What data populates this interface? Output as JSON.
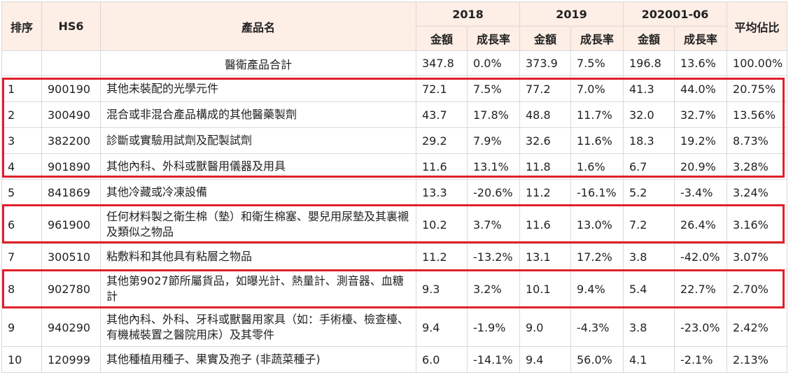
{
  "headers": {
    "rank": "排序",
    "hs6": "HS6",
    "product": "產品名",
    "years": [
      "2018",
      "2019",
      "202001-06"
    ],
    "amount": "金額",
    "growth": "成長率",
    "share": "平均佔比"
  },
  "total_row": {
    "name": "醫衛產品合計",
    "y2018_amount": "347.8",
    "y2018_growth": "0.0%",
    "y2019_amount": "373.9",
    "y2019_growth": "7.5%",
    "y2020_amount": "196.8",
    "y2020_growth": "13.6%",
    "share": "100.00%"
  },
  "rows": [
    {
      "rank": "1",
      "hs6": "900190",
      "name": "其他未裝配的光學元件",
      "a18": "72.1",
      "g18": "7.5%",
      "a19": "77.2",
      "g19": "7.0%",
      "a20": "41.3",
      "g20": "44.0%",
      "share": "20.75%"
    },
    {
      "rank": "2",
      "hs6": "300490",
      "name": "混合或非混合產品構成的其他醫藥製劑",
      "a18": "43.7",
      "g18": "17.8%",
      "a19": "48.8",
      "g19": "11.7%",
      "a20": "32.0",
      "g20": "32.7%",
      "share": "13.56%"
    },
    {
      "rank": "3",
      "hs6": "382200",
      "name": "診斷或實驗用試劑及配製試劑",
      "a18": "29.2",
      "g18": "7.9%",
      "a19": "32.6",
      "g19": "11.6%",
      "a20": "18.3",
      "g20": "19.2%",
      "share": "8.73%"
    },
    {
      "rank": "4",
      "hs6": "901890",
      "name": "其他內科、外科或獸醫用儀器及用具",
      "a18": "11.6",
      "g18": "13.1%",
      "a19": "11.8",
      "g19": "1.6%",
      "a20": "6.7",
      "g20": "20.9%",
      "share": "3.28%"
    },
    {
      "rank": "5",
      "hs6": "841869",
      "name": "其他冷藏或冷凍設備",
      "a18": "13.3",
      "g18": "-20.6%",
      "a19": "11.2",
      "g19": "-16.1%",
      "a20": "5.2",
      "g20": "-3.4%",
      "share": "3.24%"
    },
    {
      "rank": "6",
      "hs6": "961900",
      "name": "任何材料製之衛生棉（墊）和衛生棉塞、嬰兒用尿墊及其裏襯及類似之物品",
      "a18": "10.2",
      "g18": "3.7%",
      "a19": "11.6",
      "g19": "13.0%",
      "a20": "7.2",
      "g20": "26.4%",
      "share": "3.16%"
    },
    {
      "rank": "7",
      "hs6": "300510",
      "name": "粘敷料和其他具有粘層之物品",
      "a18": "11.2",
      "g18": "-13.2%",
      "a19": "13.1",
      "g19": "17.2%",
      "a20": "3.8",
      "g20": "-42.0%",
      "share": "3.07%"
    },
    {
      "rank": "8",
      "hs6": "902780",
      "name": "其他第9027節所屬貨品，如曝光計、熱量計、測音器、血糖計",
      "a18": "9.3",
      "g18": "3.2%",
      "a19": "10.1",
      "g19": "9.4%",
      "a20": "5.4",
      "g20": "22.7%",
      "share": "2.70%"
    },
    {
      "rank": "9",
      "hs6": "940290",
      "name": "其他內科、外科、牙科或獸醫用家具（如：手術檯、檢查檯、有機械裝置之醫院用床）及其零件",
      "a18": "9.4",
      "g18": "-1.9%",
      "a19": "9.0",
      "g19": "-4.3%",
      "a20": "3.8",
      "g20": "-23.0%",
      "share": "2.42%"
    },
    {
      "rank": "10",
      "hs6": "120999",
      "name": "其他種植用種子、果實及孢子 (非蔬菜種子)",
      "a18": "6.0",
      "g18": "-14.1%",
      "a19": "9.4",
      "g19": "56.0%",
      "a20": "4.1",
      "g20": "-2.1%",
      "share": "2.13%"
    }
  ],
  "highlight_color": "#e0212b",
  "header_bg": "#fdeee6"
}
